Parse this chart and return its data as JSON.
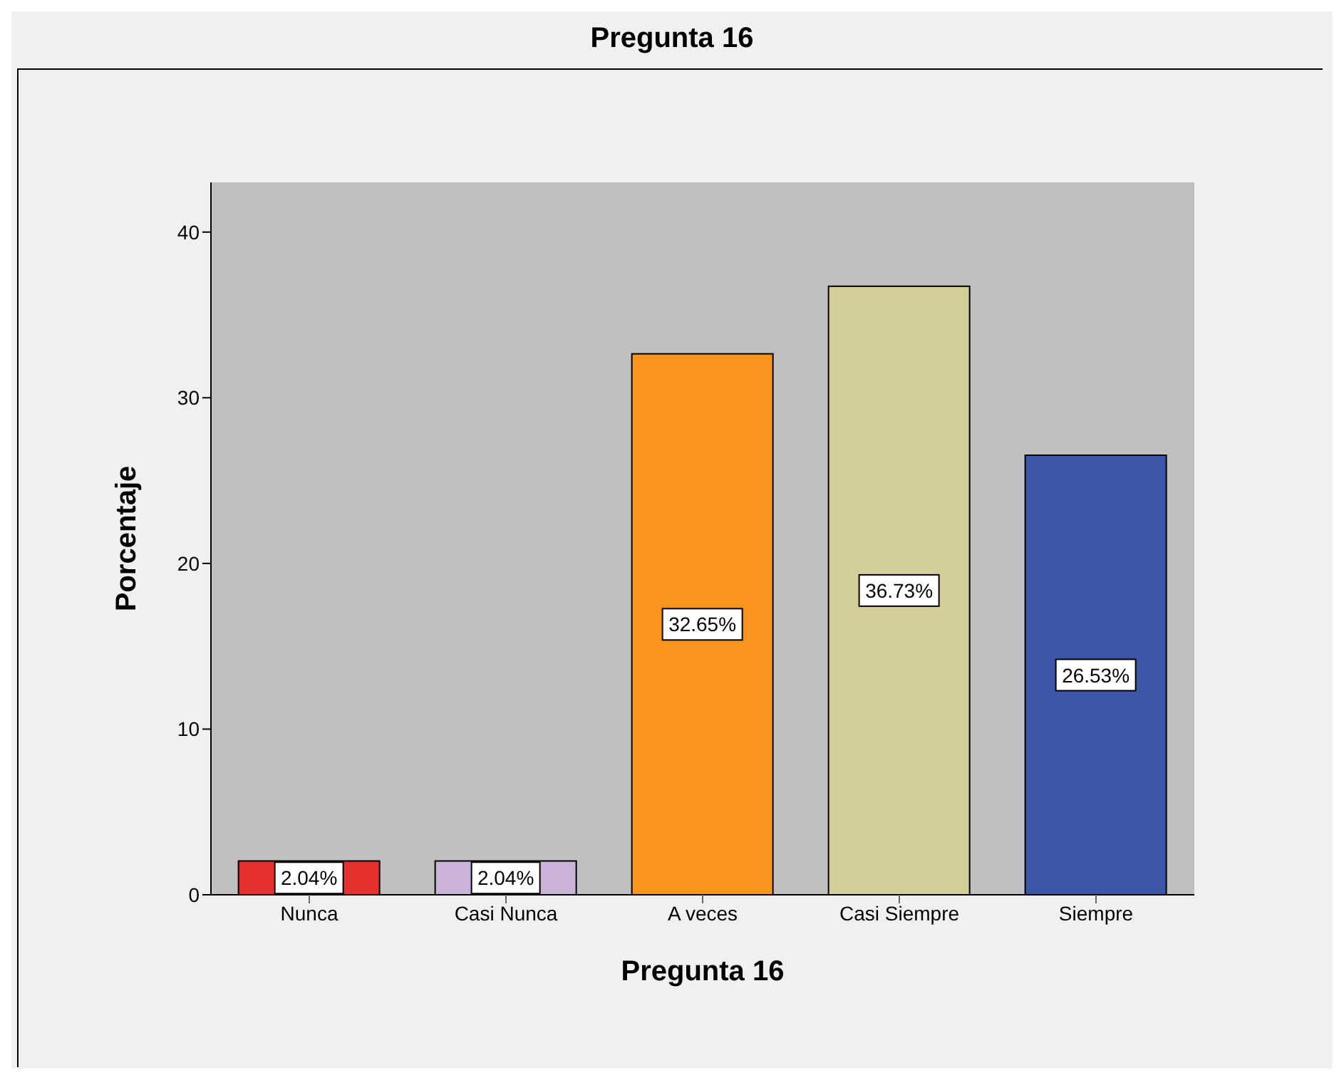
{
  "chart_data": {
    "type": "bar",
    "title": "Pregunta 16",
    "xlabel": "Pregunta 16",
    "ylabel": "Porcentaje",
    "categories": [
      "Nunca",
      "Casi Nunca",
      "A veces",
      "Casi Siempre",
      "Siempre"
    ],
    "values": [
      2.04,
      2.04,
      32.65,
      36.73,
      26.53
    ],
    "colors": [
      "#e8302f",
      "#c9b3d9",
      "#f7951d",
      "#d4cf98",
      "#3c56a8"
    ],
    "value_labels": [
      "2.04%",
      "2.04%",
      "32.65%",
      "36.73%",
      "26.53%"
    ],
    "ylim": [
      0,
      43
    ],
    "yticks": [
      0,
      10,
      20,
      30,
      40
    ],
    "legend": false
  }
}
